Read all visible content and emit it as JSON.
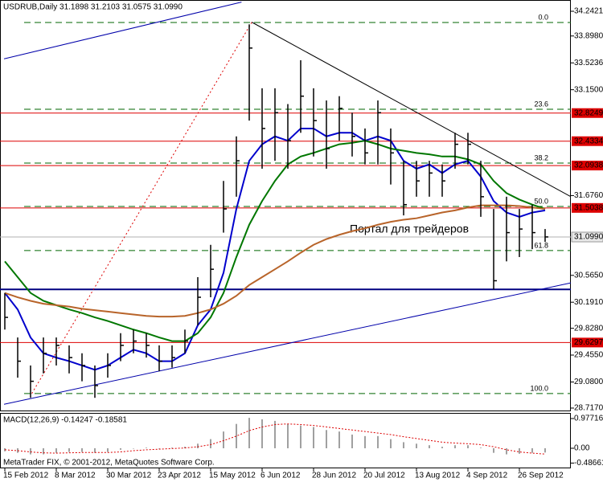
{
  "chart_data": {
    "type": "ohlc",
    "title": "USDRUB,Daily  31.1898 31.2103 31.0575 31.0990",
    "watermark": "Портал для трейдеров",
    "copyright": "MetaTrader FIX, © 2001-2012, MetaQuotes Software Corp.",
    "xlim": [
      -0.375,
      44
    ],
    "xticks": [
      {
        "value": 0,
        "label": "15 Feb 2012"
      },
      {
        "value": 4,
        "label": "8 Mar 2012"
      },
      {
        "value": 8,
        "label": "30 Mar 2012"
      },
      {
        "value": 12,
        "label": "23 Apr 2012"
      },
      {
        "value": 16,
        "label": "15 May 2012"
      },
      {
        "value": 20,
        "label": "6 Jun 2012"
      },
      {
        "value": 24,
        "label": "28 Jun 2012"
      },
      {
        "value": 28,
        "label": "20 Jul 2012"
      },
      {
        "value": 32,
        "label": "13 Aug 2012"
      },
      {
        "value": 36,
        "label": "4 Sep 2012"
      },
      {
        "value": 40,
        "label": "26 Sep 2012"
      }
    ],
    "ylim": [
      28.672,
      34.399
    ],
    "yticks": [
      34.2421,
      {
        "value": 33.898,
        "label": "33.8980"
      },
      33.5236,
      {
        "value": 33.15,
        "label": "33.1500"
      },
      {
        "value": 31.676,
        "label": "31.6760"
      },
      {
        "value": 30.565,
        "label": "30.5650"
      },
      {
        "value": 30.191,
        "label": "30.1910"
      },
      {
        "value": 29.828,
        "label": "29.8280"
      },
      {
        "value": 29.455,
        "label": "29.4550"
      },
      {
        "value": 29.08,
        "label": "29.0800"
      },
      {
        "value": 28.717,
        "label": "28.7170"
      }
    ],
    "bar_color": "#000000",
    "high": [
      30.32,
      29.7,
      29.31,
      29.7,
      29.7,
      29.59,
      29.48,
      29.31,
      29.48,
      29.76,
      29.81,
      29.76,
      29.59,
      29.59,
      29.81,
      30.54,
      30.99,
      31.88,
      32.5,
      34.06,
      33.17,
      33.17,
      32.95,
      33.56,
      33.17,
      33.0,
      33.06,
      32.83,
      32.61,
      33.0,
      32.61,
      32.16,
      32.16,
      32.16,
      32.11,
      32.55,
      32.55,
      32.16,
      31.49,
      31.66,
      31.49,
      31.55,
      31.21
    ],
    "low": [
      29.81,
      29.14,
      28.86,
      29.2,
      29.31,
      29.2,
      29.09,
      28.86,
      29.14,
      29.37,
      29.48,
      29.42,
      29.23,
      29.28,
      29.48,
      29.87,
      30.26,
      31.16,
      31.66,
      32.72,
      32.05,
      32.16,
      32.05,
      32.55,
      32.22,
      32.05,
      32.44,
      32.22,
      32.11,
      32.11,
      31.83,
      31.4,
      31.66,
      31.66,
      31.66,
      32.05,
      32.11,
      31.38,
      30.37,
      30.76,
      30.82,
      30.93,
      31.03
    ],
    "close": [
      29.98,
      29.37,
      29.09,
      29.48,
      29.59,
      29.42,
      29.31,
      29.03,
      29.31,
      29.59,
      29.65,
      29.59,
      29.37,
      29.42,
      29.65,
      30.26,
      30.65,
      31.49,
      32.16,
      33.73,
      32.61,
      32.83,
      32.44,
      33.06,
      32.72,
      32.33,
      32.89,
      32.5,
      32.27,
      32.83,
      32.27,
      31.55,
      31.88,
      31.99,
      31.88,
      32.39,
      32.39,
      31.66,
      30.49,
      31.16,
      31.21,
      31.16,
      31.1
    ],
    "moving_averages": [
      {
        "color": "#0000cc",
        "values": [
          30.32,
          30.09,
          29.7,
          29.48,
          29.42,
          29.37,
          29.31,
          29.25,
          29.31,
          29.42,
          29.53,
          29.48,
          29.37,
          29.37,
          29.48,
          29.87,
          30.09,
          30.6,
          31.49,
          32.16,
          32.39,
          32.5,
          32.44,
          32.61,
          32.61,
          32.5,
          32.55,
          32.55,
          32.44,
          32.5,
          32.44,
          32.16,
          32.05,
          32.11,
          31.99,
          32.11,
          32.16,
          31.94,
          31.6,
          31.44,
          31.38,
          31.44,
          31.47
        ]
      },
      {
        "color": "#007700",
        "values": [
          30.76,
          30.54,
          30.32,
          30.21,
          30.15,
          30.09,
          30.04,
          29.98,
          29.93,
          29.87,
          29.81,
          29.76,
          29.7,
          29.65,
          29.65,
          29.76,
          29.98,
          30.32,
          30.82,
          31.27,
          31.6,
          31.88,
          32.11,
          32.22,
          32.27,
          32.33,
          32.39,
          32.41,
          32.44,
          32.39,
          32.33,
          32.3,
          32.27,
          32.25,
          32.22,
          32.22,
          32.18,
          32.11,
          31.88,
          31.71,
          31.62,
          31.55,
          31.49
        ]
      },
      {
        "color": "#b8642a",
        "values": [
          30.32,
          30.26,
          30.21,
          30.17,
          30.15,
          30.13,
          30.1,
          30.08,
          30.06,
          30.04,
          30.02,
          30.0,
          29.99,
          29.99,
          30.0,
          30.04,
          30.09,
          30.17,
          30.28,
          30.43,
          30.54,
          30.65,
          30.76,
          30.88,
          30.99,
          31.07,
          31.13,
          31.18,
          31.22,
          31.27,
          31.31,
          31.34,
          31.36,
          31.4,
          31.44,
          31.47,
          31.51,
          31.54,
          31.54,
          31.54,
          31.53,
          31.51,
          31.49
        ]
      }
    ],
    "levels_color": "#dd0000",
    "levels": [
      32.8249,
      32.4334,
      32.0938,
      31.5038,
      29.6297
    ],
    "current_price": {
      "value": 31.099,
      "label": "31.0990"
    },
    "support_line": {
      "value": 30.37,
      "color": "#000080"
    },
    "fib": {
      "color": "#006600",
      "levels": [
        {
          "label": "0.0",
          "value": 34.086
        },
        {
          "label": "23.6",
          "value": 32.878
        },
        {
          "label": "38.2",
          "value": 32.129
        },
        {
          "label": "50.0",
          "value": 31.525
        },
        {
          "label": "61.8",
          "value": 30.91
        },
        {
          "label": "100.0",
          "value": 28.919
        }
      ]
    },
    "trend_lines": [
      {
        "color": "#0000aa",
        "dash": false,
        "x": [
          -0.06,
          18.4
        ],
        "y": [
          33.58,
          34.37
        ]
      },
      {
        "color": "#0000aa",
        "dash": false,
        "x": [
          -0.06,
          44
        ],
        "y": [
          28.77,
          30.46
        ]
      },
      {
        "color": "#000000",
        "dash": false,
        "x": [
          19.2,
          44
        ],
        "y": [
          34.09,
          31.66
        ]
      },
      {
        "color": "#dd0000",
        "dash": true,
        "x": [
          2.1,
          19.2
        ],
        "y": [
          28.92,
          34.09
        ]
      }
    ],
    "macd": {
      "type": "macd",
      "label": "MACD(12,26,9) -0.14247 -0.18581",
      "ylim": [
        -0.66,
        1.162
      ],
      "yticks": [
        0.97716,
        {
          "value": 0,
          "label": "0.00"
        },
        -0.48661
      ],
      "histogram_color": "#a0a0a0",
      "signal_color": "#dd0000",
      "histogram": [
        -0.1,
        -0.15,
        -0.2,
        -0.2,
        -0.15,
        -0.12,
        -0.12,
        -0.15,
        -0.12,
        -0.05,
        0.0,
        0.02,
        0.0,
        0.02,
        0.05,
        0.15,
        0.3,
        0.55,
        0.8,
        1.0,
        0.95,
        0.9,
        0.8,
        0.75,
        0.7,
        0.6,
        0.55,
        0.45,
        0.4,
        0.4,
        0.3,
        0.2,
        0.15,
        0.1,
        0.05,
        0.1,
        0.1,
        0.02,
        -0.15,
        -0.2,
        -0.18,
        -0.15,
        -0.14
      ],
      "signal": [
        -0.05,
        -0.08,
        -0.12,
        -0.15,
        -0.16,
        -0.15,
        -0.14,
        -0.14,
        -0.14,
        -0.12,
        -0.08,
        -0.05,
        -0.03,
        -0.01,
        0.01,
        0.05,
        0.12,
        0.25,
        0.4,
        0.58,
        0.7,
        0.78,
        0.8,
        0.78,
        0.75,
        0.7,
        0.65,
        0.6,
        0.55,
        0.5,
        0.45,
        0.38,
        0.32,
        0.26,
        0.2,
        0.17,
        0.15,
        0.12,
        0.05,
        -0.05,
        -0.12,
        -0.16,
        -0.19
      ]
    }
  }
}
